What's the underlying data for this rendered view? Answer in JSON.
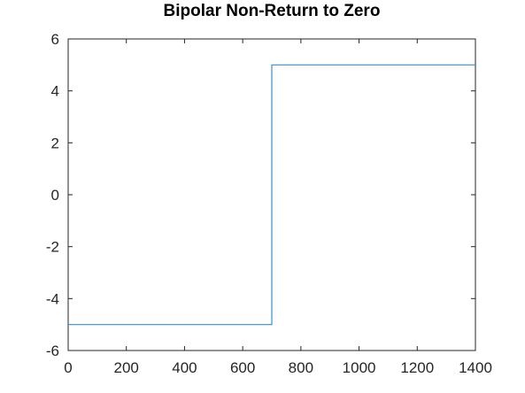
{
  "chart_data": {
    "type": "line",
    "title": "Bipolar Non-Return to Zero",
    "xlabel": "",
    "ylabel": "",
    "xlim": [
      0,
      1400
    ],
    "ylim": [
      -6,
      6
    ],
    "xticks": [
      0,
      200,
      400,
      600,
      800,
      1000,
      1200,
      1400
    ],
    "yticks": [
      -6,
      -4,
      -2,
      0,
      2,
      4,
      6
    ],
    "xtick_labels": [
      "0",
      "200",
      "400",
      "600",
      "800",
      "1000",
      "1200",
      "1400"
    ],
    "ytick_labels": [
      "-6",
      "-4",
      "-2",
      "0",
      "2",
      "4",
      "6"
    ],
    "grid": false,
    "step": true,
    "series": [
      {
        "color": "#3a8ec9",
        "x": [
          0,
          700,
          700,
          1400
        ],
        "y": [
          -5,
          -5,
          5,
          5
        ]
      }
    ]
  }
}
